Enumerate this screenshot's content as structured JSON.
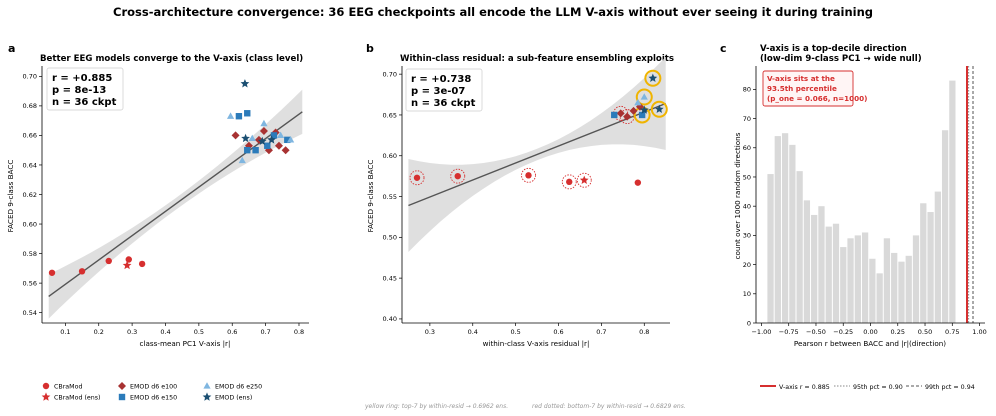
{
  "figure": {
    "suptitle": "Cross-architecture convergence: 36 EEG checkpoints all encode the LLM V-axis without ever seeing it during training",
    "footnote_left": "yellow ring: top-7 by within-resid → 0.6962 ens.",
    "footnote_right": "red dotted: bottom-7 by within-resid → 0.6829 ens."
  },
  "panels": {
    "a": {
      "letter": "a",
      "title": "Better EEG models converge to the V-axis (class level)",
      "xlabel": "class-mean PC1 V-axis  |r|",
      "ylabel": "FACED 9-class BACC",
      "stats": [
        "r = +0.885",
        "p = 8e-13",
        "n = 36 ckpt"
      ],
      "xticks": [
        "0.1",
        "0.2",
        "0.3",
        "0.4",
        "0.5",
        "0.6",
        "0.7",
        "0.8"
      ],
      "yticks": [
        "0.54",
        "0.56",
        "0.58",
        "0.60",
        "0.62",
        "0.64",
        "0.66",
        "0.68",
        "0.70"
      ]
    },
    "b": {
      "letter": "b",
      "title": "Within-class residual: a sub-feature ensembling exploits",
      "xlabel": "within-class V-axis residual  |r|",
      "ylabel": "FACED 9-class BACC",
      "stats": [
        "r = +0.738",
        "p = 3e-07",
        "n = 36 ckpt"
      ],
      "xticks": [
        "0.3",
        "0.4",
        "0.5",
        "0.6",
        "0.7",
        "0.8"
      ],
      "yticks": [
        "0.40",
        "0.45",
        "0.50",
        "0.55",
        "0.60",
        "0.65",
        "0.70"
      ]
    },
    "c": {
      "letter": "c",
      "title_line1": "V-axis is a top-decile direction",
      "title_line2": "(low-dim 9-class PC1 → wide null)",
      "xlabel": "Pearson r between BACC and |r|(direction)",
      "ylabel": "count over 1000 random directions",
      "annotation": [
        "V-axis sits at the",
        "93.5th percentile",
        "(p_one = 0.066, n=1000)"
      ],
      "xticks": [
        "−1.00",
        "−0.75",
        "−0.50",
        "−0.25",
        "0.00",
        "0.25",
        "0.50",
        "0.75",
        "1.00"
      ],
      "yticks": [
        "0",
        "10",
        "20",
        "30",
        "40",
        "50",
        "60",
        "70",
        "80"
      ]
    }
  },
  "legend_a": [
    {
      "label": "CBraMod",
      "marker": "circle",
      "color": "#d62f2f"
    },
    {
      "label": "CBraMod (ens)",
      "marker": "star",
      "color": "#d62f2f"
    },
    {
      "label": "EMOD d6 e100",
      "marker": "diamond",
      "color": "#a83232"
    },
    {
      "label": "EMOD d6 e150",
      "marker": "square",
      "color": "#2b7bba"
    },
    {
      "label": "EMOD d6 e250",
      "marker": "triangle",
      "color": "#7fb6e0"
    },
    {
      "label": "EMOD (ens)",
      "marker": "star",
      "color": "#1b4f72"
    }
  ],
  "legend_c": [
    {
      "label": "V-axis r = 0.885",
      "style": "solid",
      "color": "#d62f2f"
    },
    {
      "label": "95th pct = 0.90",
      "style": "dotted",
      "color": "#888888"
    },
    {
      "label": "99th pct = 0.94",
      "style": "dashed",
      "color": "#555555"
    }
  ],
  "colors": {
    "cbramod": "#d62f2f",
    "emod_e100": "#a83232",
    "emod_e150": "#2b7bba",
    "emod_e250": "#7fb6e0",
    "emod_ens": "#1b4f72",
    "fit": "#555555",
    "ci": "#d9d9d9",
    "hist": "#d9d9d9",
    "ring_yellow": "#f0b400",
    "ring_red": "#d62f2f"
  },
  "chart_data": [
    {
      "type": "scatter",
      "title": "Better EEG models converge to the V-axis (class level)",
      "xlabel": "class-mean PC1 V-axis  |r|",
      "ylabel": "FACED 9-class BACC",
      "xlim": [
        0.03,
        0.83
      ],
      "ylim": [
        0.533,
        0.707
      ],
      "fit": {
        "x": [
          0.05,
          0.81
        ],
        "y": [
          0.551,
          0.676
        ]
      },
      "series": [
        {
          "name": "CBraMod",
          "marker": "circle",
          "points": [
            [
              0.06,
              0.567
            ],
            [
              0.15,
              0.568
            ],
            [
              0.23,
              0.575
            ],
            [
              0.29,
              0.576
            ],
            [
              0.33,
              0.573
            ]
          ]
        },
        {
          "name": "CBraMod (ens)",
          "marker": "star",
          "points": [
            [
              0.285,
              0.572
            ]
          ]
        },
        {
          "name": "EMOD d6 e100",
          "marker": "diamond",
          "points": [
            [
              0.61,
              0.66
            ],
            [
              0.65,
              0.653
            ],
            [
              0.68,
              0.657
            ],
            [
              0.695,
              0.663
            ],
            [
              0.71,
              0.65
            ],
            [
              0.73,
              0.662
            ],
            [
              0.74,
              0.653
            ],
            [
              0.76,
              0.65
            ]
          ]
        },
        {
          "name": "EMOD d6 e150",
          "marker": "square",
          "points": [
            [
              0.62,
              0.673
            ],
            [
              0.645,
              0.65
            ],
            [
              0.645,
              0.675
            ],
            [
              0.67,
              0.65
            ],
            [
              0.705,
              0.653
            ],
            [
              0.725,
              0.66
            ],
            [
              0.765,
              0.657
            ]
          ]
        },
        {
          "name": "EMOD d6 e250",
          "marker": "triangle",
          "points": [
            [
              0.595,
              0.673
            ],
            [
              0.63,
              0.643
            ],
            [
              0.66,
              0.658
            ],
            [
              0.695,
              0.668
            ],
            [
              0.745,
              0.66
            ],
            [
              0.775,
              0.657
            ]
          ]
        },
        {
          "name": "EMOD (ens)",
          "marker": "star",
          "points": [
            [
              0.638,
              0.695
            ],
            [
              0.64,
              0.658
            ],
            [
              0.69,
              0.656
            ],
            [
              0.718,
              0.657
            ]
          ]
        }
      ]
    },
    {
      "type": "scatter",
      "title": "Within-class residual: a sub-feature ensembling exploits",
      "xlabel": "within-class V-axis residual  |r|",
      "ylabel": "FACED 9-class BACC",
      "xlim": [
        0.235,
        0.86
      ],
      "ylim": [
        0.395,
        0.71
      ],
      "fit": {
        "x": [
          0.25,
          0.85
        ],
        "y": [
          0.539,
          0.664
        ]
      },
      "series": [
        {
          "name": "CBraMod",
          "marker": "circle",
          "points": [
            [
              0.27,
              0.573
            ],
            [
              0.365,
              0.575
            ],
            [
              0.53,
              0.576
            ],
            [
              0.625,
              0.568
            ],
            [
              0.785,
              0.567
            ]
          ]
        },
        {
          "name": "CBraMod (ens)",
          "marker": "star",
          "points": [
            [
              0.66,
              0.57
            ]
          ]
        },
        {
          "name": "EMOD d6 e100",
          "marker": "diamond",
          "points": [
            [
              0.745,
              0.652
            ],
            [
              0.76,
              0.648
            ],
            [
              0.775,
              0.655
            ],
            [
              0.79,
              0.66
            ]
          ]
        },
        {
          "name": "EMOD d6 e150",
          "marker": "square",
          "points": [
            [
              0.73,
              0.65
            ],
            [
              0.795,
              0.65
            ]
          ]
        },
        {
          "name": "EMOD d6 e250",
          "marker": "triangle",
          "points": [
            [
              0.785,
              0.665
            ],
            [
              0.8,
              0.672
            ]
          ]
        },
        {
          "name": "EMOD (ens)",
          "marker": "star",
          "points": [
            [
              0.82,
              0.695
            ],
            [
              0.8,
              0.656
            ],
            [
              0.835,
              0.657
            ]
          ]
        }
      ],
      "yellow_ring": [
        [
          0.82,
          0.695
        ],
        [
          0.8,
          0.672
        ],
        [
          0.795,
          0.65
        ],
        [
          0.835,
          0.657
        ]
      ],
      "red_dotted_ring": [
        [
          0.27,
          0.573
        ],
        [
          0.365,
          0.575
        ],
        [
          0.53,
          0.576
        ],
        [
          0.625,
          0.568
        ],
        [
          0.66,
          0.57
        ],
        [
          0.745,
          0.652
        ],
        [
          0.76,
          0.648
        ]
      ]
    },
    {
      "type": "bar",
      "title": "V-axis is a top-decile direction (low-dim 9-class PC1 → wide null)",
      "xlabel": "Pearson r between BACC and |r|(direction)",
      "ylabel": "count over 1000 random directions",
      "xlim": [
        -1.05,
        1.05
      ],
      "ylim": [
        0,
        88
      ],
      "bin_start": -0.95,
      "bin_width": 0.0667,
      "counts": [
        51,
        64,
        65,
        61,
        52,
        42,
        37,
        40,
        33,
        34,
        26,
        29,
        30,
        31,
        22,
        17,
        29,
        24,
        21,
        23,
        30,
        41,
        38,
        45,
        66,
        83
      ],
      "vlines": {
        "v_axis": 0.885,
        "p95": 0.9,
        "p99": 0.94
      }
    }
  ]
}
